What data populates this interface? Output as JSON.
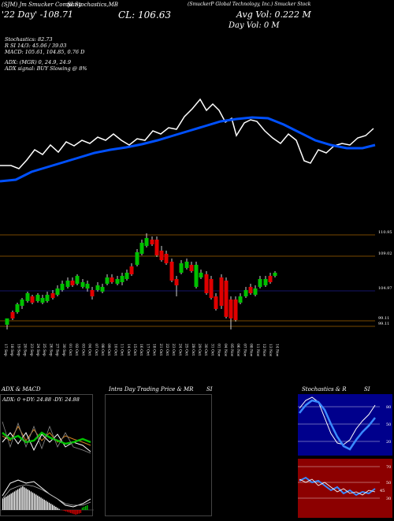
{
  "header": {
    "ticker_line": "(SJM) Jm Smucker Company",
    "ticker_line_overlap": "SI Stochastics,MB",
    "full_name": "(SmuckerP Global Technology, Inc.) Smucker Stock",
    "open_label": "'22 Day' -108.71",
    "close_label": "CL: 106.63",
    "avg_vol_label": "Avg Vol: 0.222  M",
    "day_vol_label": "Day Vol: 0   M"
  },
  "indicators": {
    "stochastics": "Stochastics: 82.73",
    "rsi": "R         SI 14/3: 45.06  / 39.03",
    "macd": "MACD: 105.61,  104.85,  0.76  D",
    "adx": "ADX:                    (MGR) 0,  24.9,  24.9",
    "adx_signal": "ADX  signal:                          BUY Slowing @ 8%"
  },
  "price_levels": [
    {
      "label": "110.95",
      "value": 110.95
    },
    {
      "label": "109.02",
      "value": 109.02
    },
    {
      "label": "104.97",
      "value": 104.97
    },
    {
      "label": "99.11",
      "value": 99.11
    },
    {
      "label": "99.11",
      "value": 99.11
    }
  ],
  "dates": [
    "17 Sep",
    "18 Sep",
    "19 Sep",
    "20 Sep",
    "23 Sep",
    "24 Sep",
    "25 Sep",
    "26 Sep",
    "27 Sep",
    "30 Sep",
    "01 Oct",
    "02 Oct",
    "03 Oct",
    "04 Oct",
    "07 Oct",
    "08 Oct",
    "09 Oct",
    "10 Oct",
    "11 Oct",
    "14 Oct",
    "15 Oct",
    "16 Oct",
    "17 Oct",
    "18 Oct",
    "21 Oct",
    "22 Oct",
    "23 Oct",
    "24 Oct",
    "25 Oct",
    "28 Oct",
    "29 Oct",
    "30 Oct",
    "31 Oct",
    "01 Nov",
    "04 Nov",
    "05 Nov",
    "06 Nov",
    "07 Nov",
    "08 Nov",
    "11 Nov",
    "12 Nov",
    "13 Nov",
    "14 Nov",
    "15 Nov",
    "18 Nov",
    "19 Nov",
    "20 Nov",
    "21 Nov",
    "22 Nov",
    "25 Nov",
    "26 Nov",
    "27 Nov",
    "29 Nov",
    "02 Dec",
    "03 Dec",
    "04 Dec",
    "05 Dec",
    "06 Dec"
  ],
  "panels": {
    "adx_macd": {
      "title": "ADX  & MACD",
      "values": "ADX: 0    +DY: 24.88    -DY: 24.88"
    },
    "intraday": {
      "title": "Intra  Day Trading Price  & MR",
      "right": "SI"
    },
    "stoch_rsi": {
      "title": "Stochastics & R",
      "right": "SI",
      "level_80": "80",
      "level_50": "50",
      "level_20": "20",
      "rsi_70": "70",
      "rsi_50": "50",
      "rsi_30": "30",
      "rsi_cur": "45"
    }
  },
  "colors": {
    "up": "#00c000",
    "down": "#e00000",
    "ma": "#0050ff",
    "level": "#a06000"
  }
}
